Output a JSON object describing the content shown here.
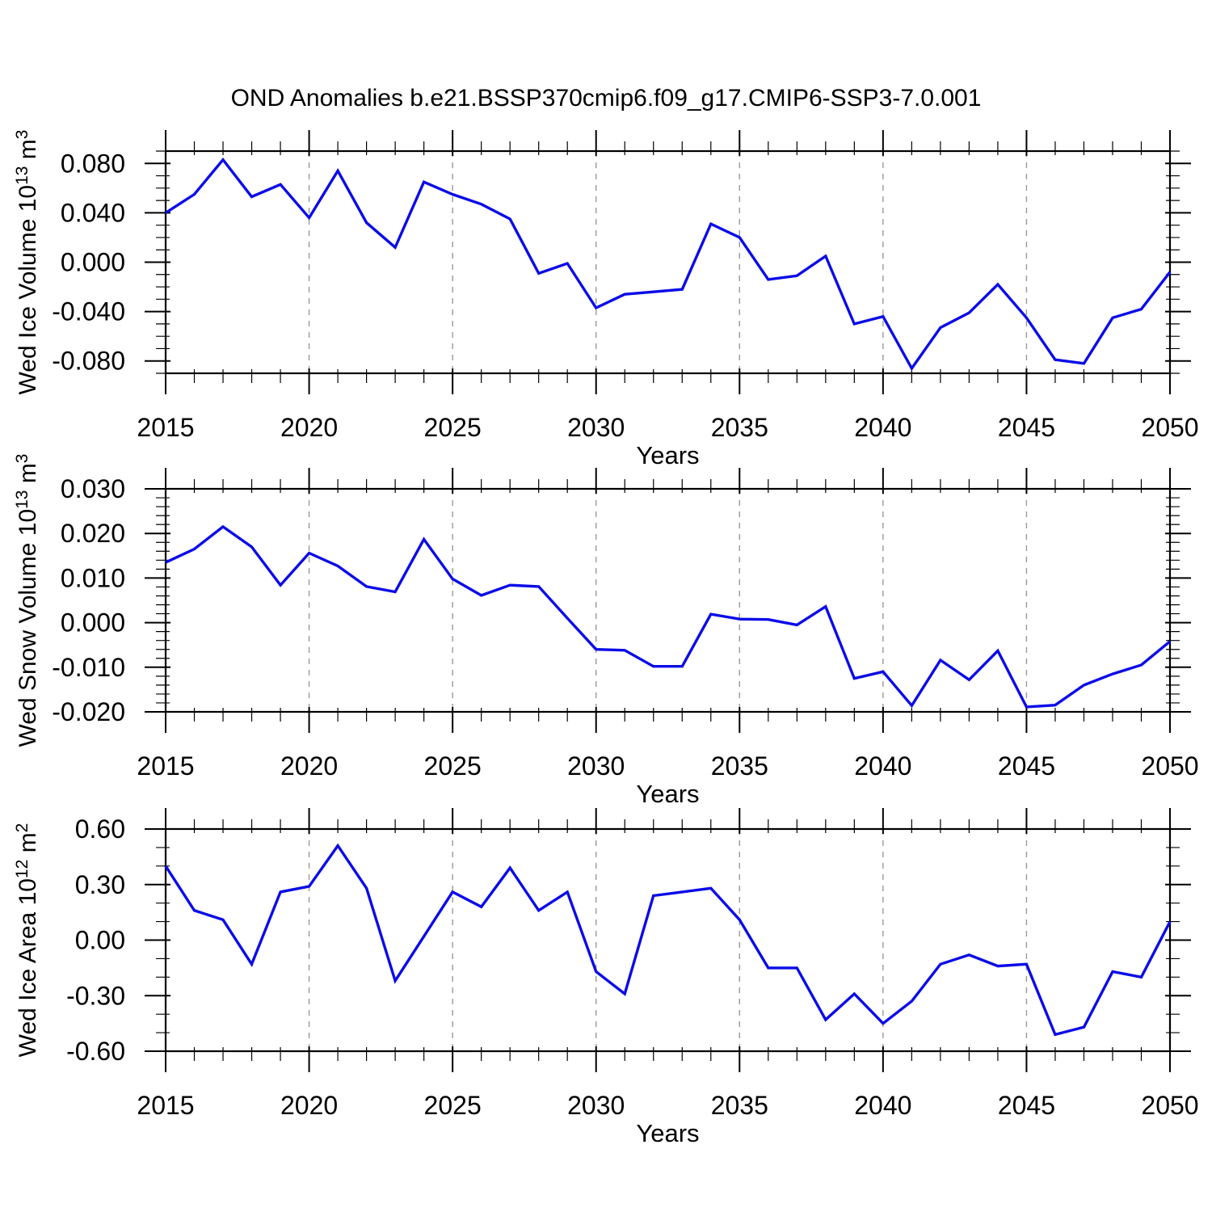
{
  "title": "OND Anomalies b.e21.BSSP370cmip6.f09_g17.CMIP6-SSP3-7.0.001",
  "line_color": "#0b0be8",
  "gridline_color": "#999999",
  "axis_color": "#000000",
  "chart_data": [
    {
      "type": "line",
      "title": "",
      "xlabel": "Years",
      "ylabel_plain": "Wed Ice Volume 10^13 m^3",
      "ylabel_segments": [
        {
          "t": "Wed Ice Volume 10"
        },
        {
          "t": "13",
          "sup": true
        },
        {
          "t": " m"
        },
        {
          "t": "3",
          "sup": true
        }
      ],
      "xlim": [
        2015,
        2050
      ],
      "ylim": [
        -0.09,
        0.09
      ],
      "grid": "vertical-dashed",
      "gridlines_x": [
        2020,
        2025,
        2030,
        2035,
        2040,
        2045
      ],
      "xticks": {
        "values": [
          2015,
          2020,
          2025,
          2030,
          2035,
          2040,
          2045,
          2050
        ],
        "labels": [
          "2015",
          "2020",
          "2025",
          "2030",
          "2035",
          "2040",
          "2045",
          "2050"
        ],
        "minor_step": 1
      },
      "yticks": {
        "values": [
          0.08,
          0.04,
          0.0,
          -0.04,
          -0.08
        ],
        "labels": [
          "0.080",
          "0.040",
          "0.000",
          "-0.040",
          "-0.080"
        ],
        "minor_step": 0.01
      },
      "x": [
        2015,
        2016,
        2017,
        2018,
        2019,
        2020,
        2021,
        2022,
        2023,
        2024,
        2025,
        2026,
        2027,
        2028,
        2029,
        2030,
        2031,
        2032,
        2033,
        2034,
        2035,
        2036,
        2037,
        2038,
        2039,
        2040,
        2041,
        2042,
        2043,
        2044,
        2045,
        2046,
        2047,
        2048,
        2049,
        2050
      ],
      "values": [
        0.04,
        0.055,
        0.083,
        0.053,
        0.063,
        0.036,
        0.074,
        0.032,
        0.012,
        0.065,
        0.055,
        0.047,
        0.035,
        -0.009,
        -0.001,
        -0.037,
        -0.026,
        -0.024,
        -0.022,
        0.031,
        0.02,
        -0.014,
        -0.011,
        0.005,
        -0.05,
        -0.044,
        -0.086,
        -0.053,
        -0.041,
        -0.018,
        -0.045,
        -0.079,
        -0.082,
        -0.045,
        -0.038,
        -0.008
      ]
    },
    {
      "type": "line",
      "title": "",
      "xlabel": "Years",
      "ylabel_plain": "Wed Snow Volume 10^13 m^3",
      "ylabel_segments": [
        {
          "t": "Wed Snow Volume 10"
        },
        {
          "t": "13",
          "sup": true
        },
        {
          "t": " m"
        },
        {
          "t": "3",
          "sup": true
        }
      ],
      "xlim": [
        2015,
        2050
      ],
      "ylim": [
        -0.02,
        0.03
      ],
      "grid": "vertical-dashed",
      "gridlines_x": [
        2020,
        2025,
        2030,
        2035,
        2040,
        2045
      ],
      "xticks": {
        "values": [
          2015,
          2020,
          2025,
          2030,
          2035,
          2040,
          2045,
          2050
        ],
        "labels": [
          "2015",
          "2020",
          "2025",
          "2030",
          "2035",
          "2040",
          "2045",
          "2050"
        ],
        "minor_step": 1
      },
      "yticks": {
        "values": [
          0.03,
          0.02,
          0.01,
          0.0,
          -0.01,
          -0.02
        ],
        "labels": [
          "0.030",
          "0.020",
          "0.010",
          "0.000",
          "-0.010",
          "-0.020"
        ],
        "minor_step": 0.002
      },
      "x": [
        2015,
        2016,
        2017,
        2018,
        2019,
        2020,
        2021,
        2022,
        2023,
        2024,
        2025,
        2026,
        2027,
        2028,
        2029,
        2030,
        2031,
        2032,
        2033,
        2034,
        2035,
        2036,
        2037,
        2038,
        2039,
        2040,
        2041,
        2042,
        2043,
        2044,
        2045,
        2046,
        2047,
        2048,
        2049,
        2050
      ],
      "values": [
        0.0135,
        0.0165,
        0.0215,
        0.017,
        0.0084,
        0.0156,
        0.0127,
        0.0081,
        0.0069,
        0.0187,
        0.0098,
        0.0061,
        0.0084,
        0.0081,
        0.001,
        -0.006,
        -0.0062,
        -0.0098,
        -0.0098,
        0.0019,
        0.0008,
        0.0007,
        -0.0005,
        0.0036,
        -0.0125,
        -0.011,
        -0.0186,
        -0.0084,
        -0.0128,
        -0.0063,
        -0.0189,
        -0.0185,
        -0.014,
        -0.0115,
        -0.0095,
        -0.0042
      ]
    },
    {
      "type": "line",
      "title": "",
      "xlabel": "Years",
      "ylabel_plain": "Wed Ice Area 10^12 m^2",
      "ylabel_segments": [
        {
          "t": "Wed Ice Area 10"
        },
        {
          "t": "12",
          "sup": true
        },
        {
          "t": " m"
        },
        {
          "t": "2",
          "sup": true
        }
      ],
      "xlim": [
        2015,
        2050
      ],
      "ylim": [
        -0.6,
        0.6
      ],
      "grid": "vertical-dashed",
      "gridlines_x": [
        2020,
        2025,
        2030,
        2035,
        2040,
        2045
      ],
      "xticks": {
        "values": [
          2015,
          2020,
          2025,
          2030,
          2035,
          2040,
          2045,
          2050
        ],
        "labels": [
          "2015",
          "2020",
          "2025",
          "2030",
          "2035",
          "2040",
          "2045",
          "2050"
        ],
        "minor_step": 1
      },
      "yticks": {
        "values": [
          0.6,
          0.3,
          0.0,
          -0.3,
          -0.6
        ],
        "labels": [
          "0.60",
          "0.30",
          "0.00",
          "-0.30",
          "-0.60"
        ],
        "minor_step": 0.1
      },
      "x": [
        2015,
        2016,
        2017,
        2018,
        2019,
        2020,
        2021,
        2022,
        2023,
        2024,
        2025,
        2026,
        2027,
        2028,
        2029,
        2030,
        2031,
        2032,
        2033,
        2034,
        2035,
        2036,
        2037,
        2038,
        2039,
        2040,
        2041,
        2042,
        2043,
        2044,
        2045,
        2046,
        2047,
        2048,
        2049,
        2050
      ],
      "values": [
        0.4,
        0.16,
        0.11,
        -0.13,
        0.26,
        0.29,
        0.51,
        0.28,
        -0.22,
        0.02,
        0.26,
        0.18,
        0.39,
        0.16,
        0.26,
        -0.17,
        -0.29,
        0.24,
        0.26,
        0.28,
        0.11,
        -0.15,
        -0.15,
        -0.43,
        -0.29,
        -0.45,
        -0.33,
        -0.13,
        -0.08,
        -0.14,
        -0.13,
        -0.51,
        -0.47,
        -0.17,
        -0.2,
        0.1
      ]
    }
  ]
}
